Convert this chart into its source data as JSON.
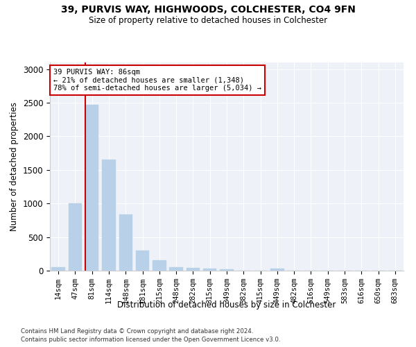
{
  "title1": "39, PURVIS WAY, HIGHWOODS, COLCHESTER, CO4 9FN",
  "title2": "Size of property relative to detached houses in Colchester",
  "xlabel": "Distribution of detached houses by size in Colchester",
  "ylabel": "Number of detached properties",
  "categories": [
    "14sqm",
    "47sqm",
    "81sqm",
    "114sqm",
    "148sqm",
    "181sqm",
    "215sqm",
    "248sqm",
    "282sqm",
    "315sqm",
    "349sqm",
    "382sqm",
    "415sqm",
    "449sqm",
    "482sqm",
    "516sqm",
    "549sqm",
    "583sqm",
    "616sqm",
    "650sqm",
    "683sqm"
  ],
  "values": [
    50,
    1000,
    2470,
    1650,
    840,
    300,
    150,
    55,
    45,
    35,
    20,
    0,
    0,
    30,
    0,
    0,
    0,
    0,
    0,
    0,
    0
  ],
  "bar_color": "#b8d0e8",
  "bar_edge_color": "#b8d0e8",
  "highlight_bar_index": 2,
  "highlight_line_color": "#cc0000",
  "annotation_text": "39 PURVIS WAY: 86sqm\n← 21% of detached houses are smaller (1,348)\n78% of semi-detached houses are larger (5,034) →",
  "annotation_box_facecolor": "#ffffff",
  "annotation_box_edgecolor": "#cc0000",
  "ylim": [
    0,
    3100
  ],
  "yticks": [
    0,
    500,
    1000,
    1500,
    2000,
    2500,
    3000
  ],
  "footer1": "Contains HM Land Registry data © Crown copyright and database right 2024.",
  "footer2": "Contains public sector information licensed under the Open Government Licence v3.0.",
  "plot_bg_color": "#eef2f8",
  "fig_bg_color": "#ffffff"
}
